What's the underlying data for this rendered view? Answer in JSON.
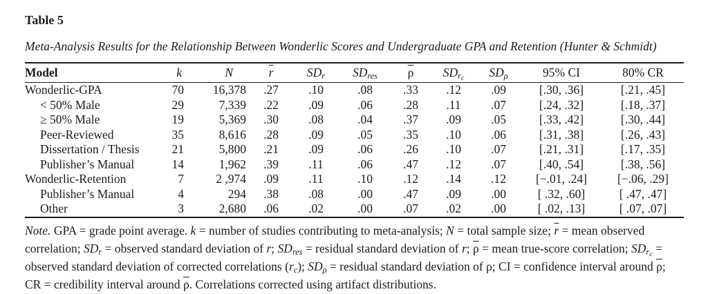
{
  "page": {
    "background": "#ffffff",
    "text_color": "#1b1b1b",
    "rule_color": "#1b1b1b"
  },
  "table_label": "Table 5",
  "caption": "Meta-Analysis Results for the Relationship Between Wonderlic Scores and Undergraduate GPA and Retention (Hunter & Schmidt)",
  "table": {
    "columns": [
      {
        "key": "model",
        "align": "left",
        "label": [
          {
            "t": "Model",
            "b": true
          }
        ]
      },
      {
        "key": "k",
        "align": "right",
        "label": [
          {
            "t": "k",
            "i": true
          }
        ]
      },
      {
        "key": "n",
        "align": "right",
        "label": [
          {
            "t": "N",
            "i": true
          }
        ]
      },
      {
        "key": "rbar",
        "align": "center",
        "label": [
          {
            "t": "r",
            "i": true,
            "ov": true
          }
        ]
      },
      {
        "key": "sdr",
        "align": "center",
        "label": [
          {
            "t": "SD",
            "i": true,
            "sub": "r"
          }
        ]
      },
      {
        "key": "sdres",
        "align": "center",
        "label": [
          {
            "t": "SD",
            "i": true,
            "sub": "res"
          }
        ]
      },
      {
        "key": "rhobar",
        "align": "center",
        "label": [
          {
            "t": "ρ",
            "ov": true
          }
        ]
      },
      {
        "key": "sdrc",
        "align": "center",
        "label": [
          {
            "t": "SD",
            "i": true,
            "sub": "r",
            "subsub": "c"
          }
        ]
      },
      {
        "key": "sdrho",
        "align": "center",
        "label": [
          {
            "t": "SD",
            "i": true,
            "sub": "ρ"
          }
        ]
      },
      {
        "key": "ci",
        "align": "center",
        "label": [
          {
            "t": "95% CI"
          }
        ]
      },
      {
        "key": "cr",
        "align": "center",
        "label": [
          {
            "t": "80% CR"
          }
        ]
      }
    ],
    "rows": [
      {
        "model": "Wonderlic-GPA",
        "indent": false,
        "values": [
          "70",
          "16,378",
          ".27",
          ".10",
          ".08",
          ".33",
          ".12",
          ".09",
          "[.30, .36]",
          "[.21, .45]"
        ]
      },
      {
        "model": "< 50% Male",
        "indent": true,
        "values": [
          "29",
          "7,339",
          ".22",
          ".09",
          ".06",
          ".28",
          ".11",
          ".07",
          "[.24, .32]",
          "[.18, .37]"
        ]
      },
      {
        "model": "≥ 50% Male",
        "indent": true,
        "values": [
          "19",
          "5,369",
          ".30",
          ".08",
          ".04",
          ".37",
          ".09",
          ".05",
          "[.33, .42]",
          "[.30, .44]"
        ]
      },
      {
        "model": "Peer-Reviewed",
        "indent": true,
        "values": [
          "35",
          "8,616",
          ".28",
          ".09",
          ".05",
          ".35",
          ".10",
          ".06",
          "[.31, .38]",
          "[.26, .43]"
        ]
      },
      {
        "model": "Dissertation / Thesis",
        "indent": true,
        "values": [
          "21",
          "5,800",
          ".21",
          ".09",
          ".06",
          ".26",
          ".10",
          ".07",
          "[.21, .31]",
          "[.17, .35]"
        ]
      },
      {
        "model": "Publisher’s Manual",
        "indent": true,
        "values": [
          "14",
          "1,962",
          ".39",
          ".11",
          ".06",
          ".47",
          ".12",
          ".07",
          "[.40, .54]",
          "[.38, .56]"
        ]
      },
      {
        "model": "Wonderlic-Retention",
        "indent": false,
        "values": [
          "7",
          "2 ,974",
          ".09",
          ".11",
          ".10",
          ".12",
          ".14",
          ".12",
          "[−.01, .24]",
          "[−.06, .29]"
        ]
      },
      {
        "model": "Publisher’s Manual",
        "indent": true,
        "values": [
          "4",
          "294",
          ".38",
          ".08",
          ".00",
          ".47",
          ".09",
          ".00",
          "[ .32, .60]",
          "[ .47, .47]"
        ]
      },
      {
        "model": "Other",
        "indent": true,
        "values": [
          "3",
          "2,680",
          ".06",
          ".02",
          ".00",
          ".07",
          ".02",
          ".00",
          "[ .02, .13]",
          "[ .07, .07]"
        ]
      }
    ]
  },
  "note": {
    "segments": [
      {
        "t": "Note.",
        "i": true
      },
      {
        "t": " GPA = grade point average. "
      },
      {
        "t": "k",
        "i": true
      },
      {
        "t": " = number of studies contributing to meta-analysis; "
      },
      {
        "t": "N",
        "i": true
      },
      {
        "t": " = total sample size; "
      },
      {
        "t": "r",
        "i": true,
        "ov": true
      },
      {
        "t": " = mean observed correlation; "
      },
      {
        "t": "SD",
        "i": true,
        "sub": "r"
      },
      {
        "t": " = observed standard deviation of "
      },
      {
        "t": "r",
        "i": true
      },
      {
        "t": "; "
      },
      {
        "t": "SD",
        "i": true,
        "sub": "res"
      },
      {
        "t": " = residual standard deviation of "
      },
      {
        "t": "r",
        "i": true
      },
      {
        "t": "; "
      },
      {
        "t": "ρ",
        "ov": true
      },
      {
        "t": " = mean true-score correlation; "
      },
      {
        "t": "SD",
        "i": true,
        "sub": "r",
        "subsub": "c"
      },
      {
        "t": " = observed standard deviation of corrected correlations ("
      },
      {
        "t": "r",
        "i": true,
        "sub": "c"
      },
      {
        "t": "); "
      },
      {
        "t": "SD",
        "i": true,
        "sub": "ρ"
      },
      {
        "t": " = residual standard deviation of ρ; CI = confidence interval around "
      },
      {
        "t": "ρ",
        "ov": true
      },
      {
        "t": "; CR = credibility interval around "
      },
      {
        "t": "ρ",
        "ov": true
      },
      {
        "t": ". Correlations corrected using artifact distributions."
      }
    ]
  }
}
